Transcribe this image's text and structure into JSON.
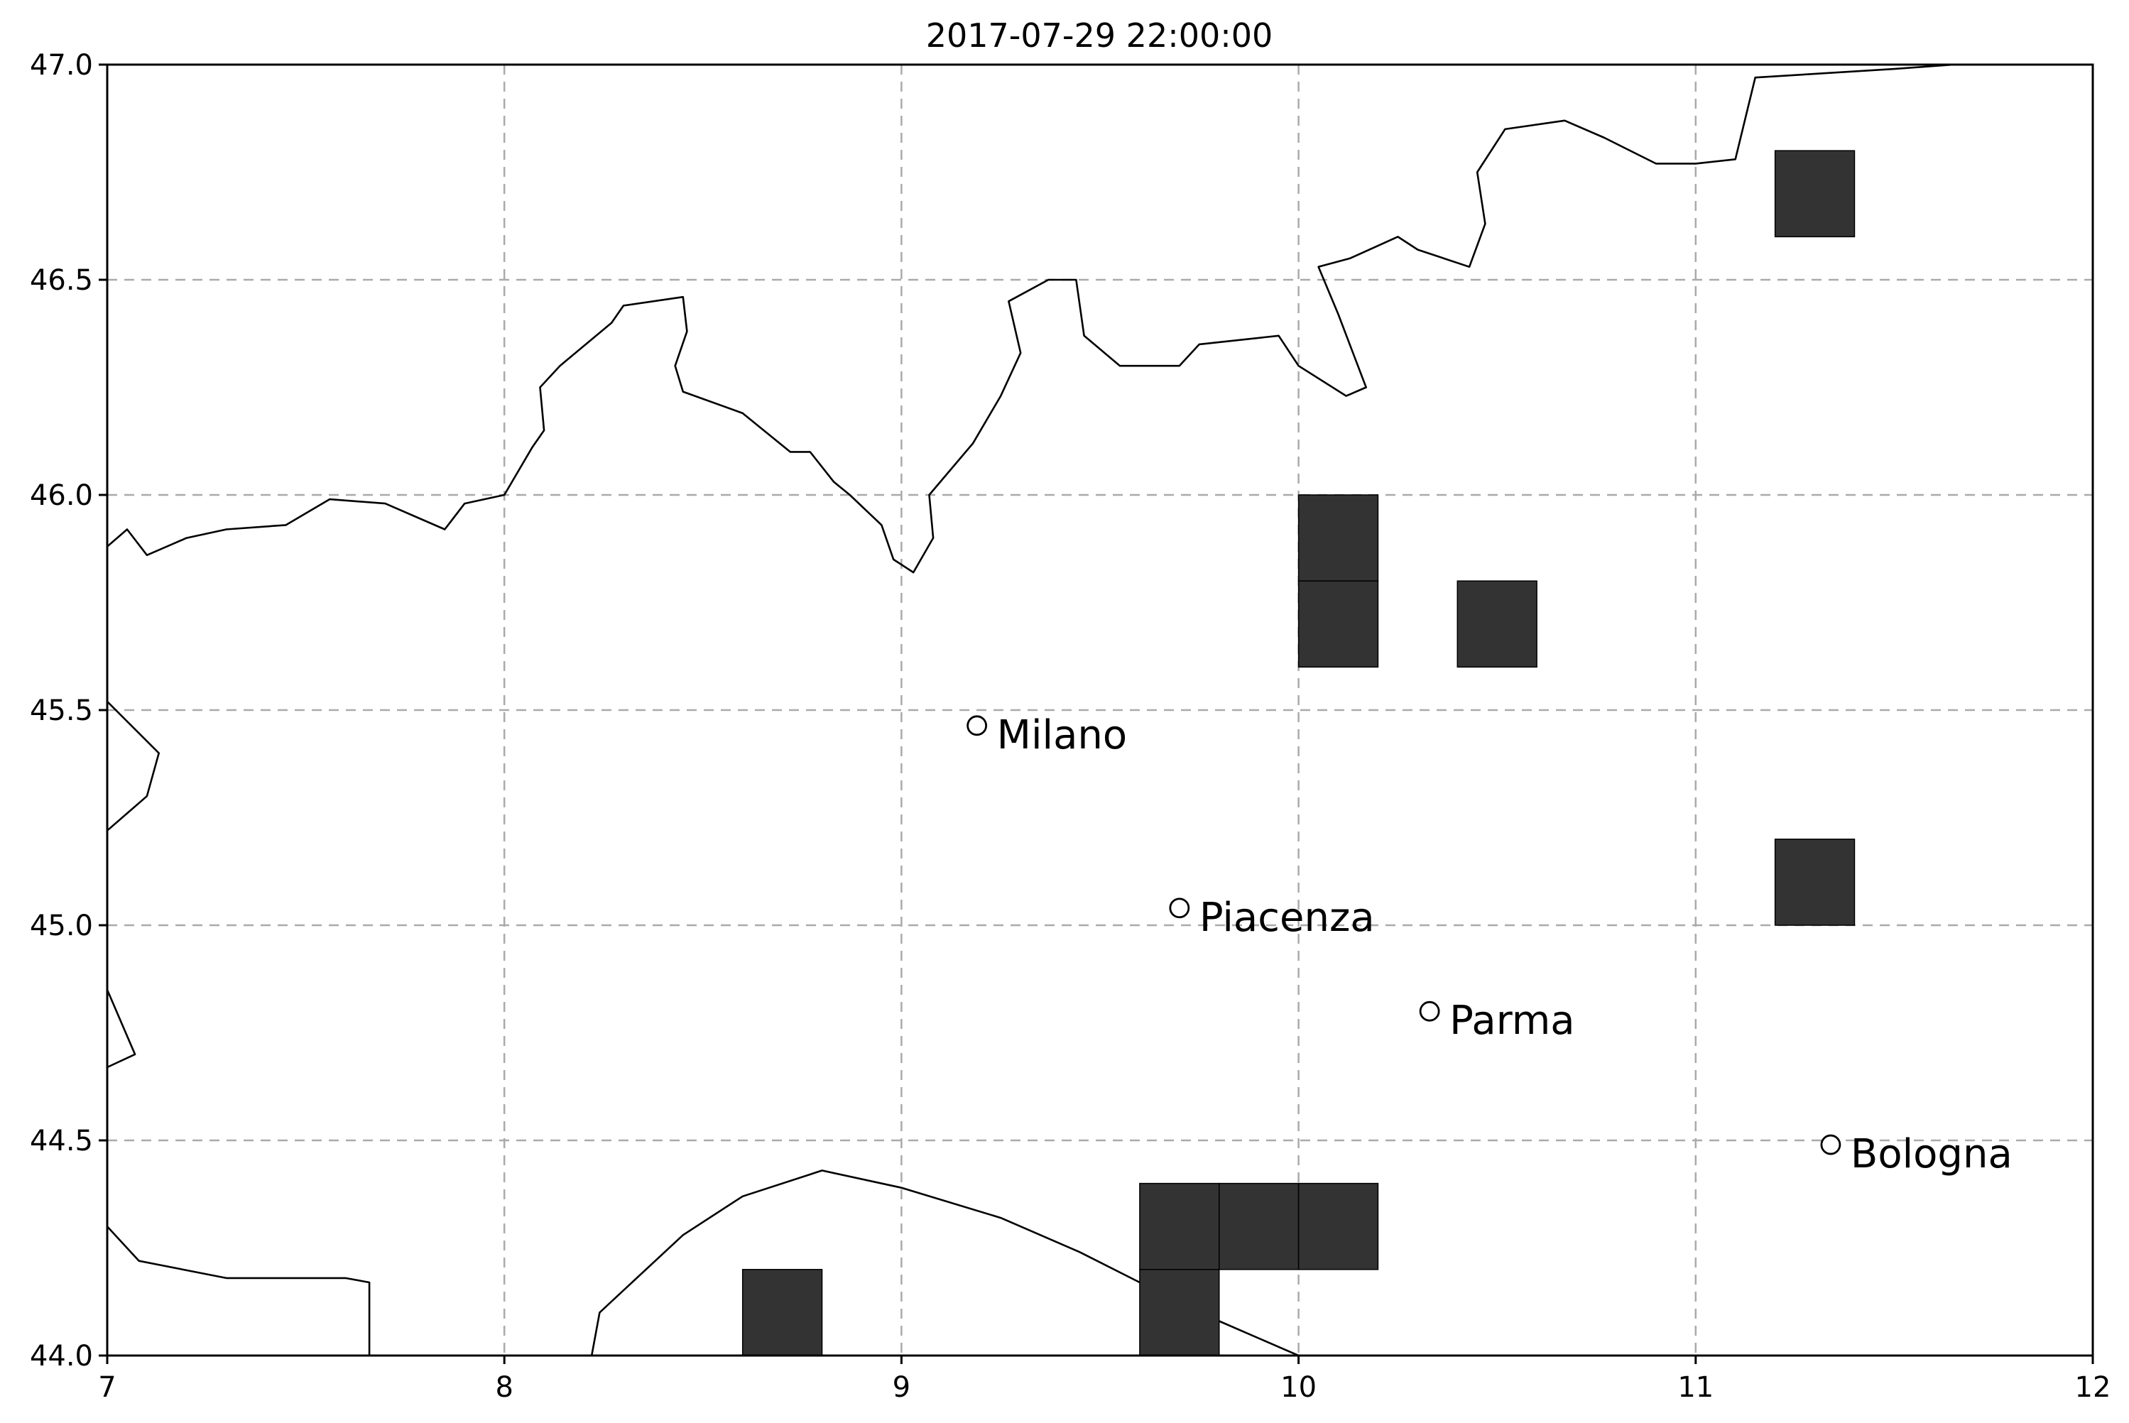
{
  "title": "2017-07-29 22:00:00",
  "map": {
    "lon_range": [
      7,
      12
    ],
    "lat_range": [
      44.0,
      47.0
    ],
    "grid": true,
    "x_ticks": [
      {
        "value": 7,
        "label": "7"
      },
      {
        "value": 8,
        "label": "8"
      },
      {
        "value": 9,
        "label": "9"
      },
      {
        "value": 10,
        "label": "10"
      },
      {
        "value": 11,
        "label": "11"
      },
      {
        "value": 12,
        "label": "12"
      }
    ],
    "y_ticks": [
      {
        "value": 44.0,
        "label": "44.0"
      },
      {
        "value": 44.5,
        "label": "44.5"
      },
      {
        "value": 45.0,
        "label": "45.0"
      },
      {
        "value": 45.5,
        "label": "45.5"
      },
      {
        "value": 46.0,
        "label": "46.0"
      },
      {
        "value": 46.5,
        "label": "46.5"
      },
      {
        "value": 47.0,
        "label": "47.0"
      }
    ],
    "cell_color": "#333333",
    "cells": [
      {
        "lon": [
          11.2,
          11.4
        ],
        "lat": [
          46.6,
          46.8
        ]
      },
      {
        "lon": [
          10.0,
          10.2
        ],
        "lat": [
          45.8,
          46.0
        ]
      },
      {
        "lon": [
          10.0,
          10.2
        ],
        "lat": [
          45.6,
          45.8
        ]
      },
      {
        "lon": [
          10.4,
          10.6
        ],
        "lat": [
          45.6,
          45.8
        ]
      },
      {
        "lon": [
          11.2,
          11.4
        ],
        "lat": [
          45.0,
          45.2
        ]
      },
      {
        "lon": [
          9.6,
          9.8
        ],
        "lat": [
          44.2,
          44.4
        ]
      },
      {
        "lon": [
          9.8,
          10.0
        ],
        "lat": [
          44.2,
          44.4
        ]
      },
      {
        "lon": [
          10.0,
          10.2
        ],
        "lat": [
          44.2,
          44.4
        ]
      },
      {
        "lon": [
          9.6,
          9.8
        ],
        "lat": [
          44.0,
          44.2
        ]
      },
      {
        "lon": [
          8.6,
          8.8
        ],
        "lat": [
          44.0,
          44.2
        ]
      }
    ],
    "cities": [
      {
        "name": "Milano",
        "lon": 9.19,
        "lat": 45.464
      },
      {
        "name": "Piacenza",
        "lon": 9.7,
        "lat": 45.04
      },
      {
        "name": "Parma",
        "lon": 10.33,
        "lat": 44.8
      },
      {
        "name": "Bologna",
        "lon": 11.34,
        "lat": 44.49
      }
    ],
    "coastlines": [
      [
        [
          7.0,
          45.88
        ],
        [
          7.05,
          45.92
        ],
        [
          7.1,
          45.86
        ],
        [
          7.2,
          45.9
        ],
        [
          7.3,
          45.92
        ],
        [
          7.45,
          45.93
        ],
        [
          7.56,
          45.99
        ],
        [
          7.7,
          45.98
        ],
        [
          7.85,
          45.92
        ],
        [
          7.9,
          45.98
        ],
        [
          8.0,
          46.0
        ],
        [
          8.07,
          46.11
        ],
        [
          8.1,
          46.15
        ],
        [
          8.09,
          46.25
        ],
        [
          8.14,
          46.3
        ],
        [
          8.27,
          46.4
        ],
        [
          8.3,
          46.44
        ],
        [
          8.45,
          46.46
        ],
        [
          8.46,
          46.38
        ],
        [
          8.43,
          46.3
        ],
        [
          8.45,
          46.24
        ],
        [
          8.6,
          46.19
        ],
        [
          8.72,
          46.1
        ],
        [
          8.77,
          46.1
        ],
        [
          8.83,
          46.03
        ],
        [
          8.87,
          46.0
        ],
        [
          8.95,
          45.93
        ],
        [
          8.98,
          45.85
        ],
        [
          9.03,
          45.82
        ],
        [
          9.08,
          45.9
        ],
        [
          9.07,
          46.0
        ],
        [
          9.18,
          46.12
        ],
        [
          9.25,
          46.23
        ],
        [
          9.3,
          46.33
        ],
        [
          9.27,
          46.45
        ],
        [
          9.37,
          46.5
        ],
        [
          9.44,
          46.5
        ],
        [
          9.46,
          46.37
        ],
        [
          9.55,
          46.3
        ],
        [
          9.7,
          46.3
        ],
        [
          9.75,
          46.35
        ],
        [
          9.95,
          46.37
        ],
        [
          10.0,
          46.3
        ],
        [
          10.12,
          46.23
        ],
        [
          10.17,
          46.25
        ],
        [
          10.1,
          46.42
        ],
        [
          10.05,
          46.53
        ],
        [
          10.13,
          46.55
        ],
        [
          10.25,
          46.6
        ],
        [
          10.3,
          46.57
        ],
        [
          10.43,
          46.53
        ],
        [
          10.47,
          46.63
        ],
        [
          10.45,
          46.75
        ],
        [
          10.52,
          46.85
        ],
        [
          10.67,
          46.87
        ],
        [
          10.77,
          46.83
        ],
        [
          10.9,
          46.77
        ],
        [
          11.0,
          46.77
        ],
        [
          11.1,
          46.78
        ],
        [
          11.15,
          46.97
        ],
        [
          11.5,
          46.99
        ],
        [
          11.65,
          47.0
        ],
        [
          11.82,
          47.0
        ]
      ],
      [
        [
          7.0,
          45.52
        ],
        [
          7.13,
          45.4
        ],
        [
          7.1,
          45.3
        ],
        [
          7.0,
          45.22
        ]
      ],
      [
        [
          7.0,
          44.85
        ],
        [
          7.07,
          44.7
        ],
        [
          7.0,
          44.67
        ]
      ],
      [
        [
          7.0,
          44.3
        ],
        [
          7.08,
          44.22
        ],
        [
          7.3,
          44.18
        ],
        [
          7.6,
          44.18
        ],
        [
          7.66,
          44.17
        ],
        [
          7.66,
          44.05
        ],
        [
          7.66,
          44.0
        ]
      ],
      [
        [
          8.22,
          44.0
        ],
        [
          8.24,
          44.1
        ],
        [
          8.45,
          44.28
        ],
        [
          8.6,
          44.37
        ],
        [
          8.8,
          44.43
        ],
        [
          9.0,
          44.39
        ],
        [
          9.25,
          44.32
        ],
        [
          9.45,
          44.24
        ],
        [
          9.6,
          44.17
        ],
        [
          9.8,
          44.08
        ],
        [
          10.0,
          44.0
        ],
        [
          10.1,
          44.0
        ]
      ]
    ]
  }
}
